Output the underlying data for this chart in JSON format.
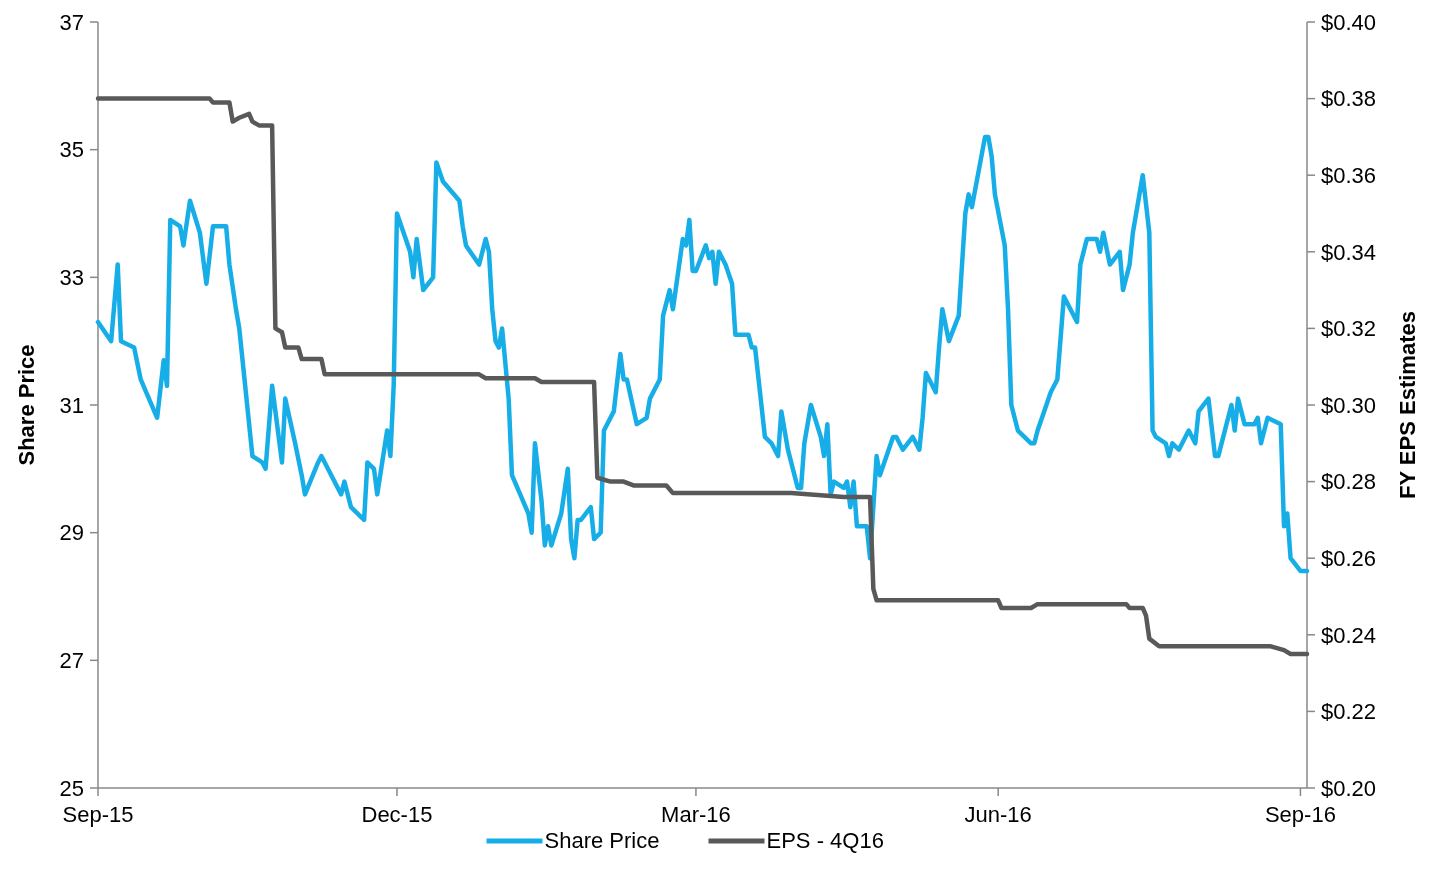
{
  "chart_data": {
    "type": "line",
    "ylabel": "Share Price",
    "y2label": "FY EPS Estimates",
    "legend": "bottom",
    "xlim": [
      "2015-09-01",
      "2016-09-03"
    ],
    "xticks": [
      {
        "value": "2015-09-01",
        "label": "Sep-15"
      },
      {
        "value": "2015-12-01",
        "label": "Dec-15"
      },
      {
        "value": "2016-03-01",
        "label": "Mar-16"
      },
      {
        "value": "2016-06-01",
        "label": "Jun-16"
      },
      {
        "value": "2016-09-01",
        "label": "Sep-16"
      }
    ],
    "ylim": [
      25,
      37
    ],
    "yticks": [
      25,
      27,
      29,
      31,
      33,
      35,
      37
    ],
    "y2lim": [
      0.2,
      0.4
    ],
    "y2ticks": [
      {
        "value": 0.2,
        "label": "$0.20"
      },
      {
        "value": 0.22,
        "label": "$0.22"
      },
      {
        "value": 0.24,
        "label": "$0.24"
      },
      {
        "value": 0.26,
        "label": "$0.26"
      },
      {
        "value": 0.28,
        "label": "$0.28"
      },
      {
        "value": 0.3,
        "label": "$0.30"
      },
      {
        "value": 0.32,
        "label": "$0.32"
      },
      {
        "value": 0.34,
        "label": "$0.34"
      },
      {
        "value": 0.36,
        "label": "$0.36"
      },
      {
        "value": 0.38,
        "label": "$0.38"
      },
      {
        "value": 0.4,
        "label": "$0.40"
      }
    ],
    "series": [
      {
        "name": "Share Price",
        "color": "#17aee8",
        "x": [
          "2015-09-01",
          "2015-09-05",
          "2015-09-07",
          "2015-09-08",
          "2015-09-12",
          "2015-09-14",
          "2015-09-19",
          "2015-09-21",
          "2015-09-22",
          "2015-09-23",
          "2015-09-26",
          "2015-09-27",
          "2015-09-29",
          "2015-10-02",
          "2015-10-04",
          "2015-10-06",
          "2015-10-10",
          "2015-10-11",
          "2015-10-13",
          "2015-10-14",
          "2015-10-18",
          "2015-10-21",
          "2015-10-22",
          "2015-10-24",
          "2015-10-27",
          "2015-10-28",
          "2015-10-31",
          "2015-11-02",
          "2015-11-03",
          "2015-11-07",
          "2015-11-08",
          "2015-11-11",
          "2015-11-14",
          "2015-11-15",
          "2015-11-17",
          "2015-11-21",
          "2015-11-22",
          "2015-11-24",
          "2015-11-25",
          "2015-11-28",
          "2015-11-29",
          "2015-11-30",
          "2015-12-01",
          "2015-12-05",
          "2015-12-06",
          "2015-12-07",
          "2015-12-09",
          "2015-12-12",
          "2015-12-13",
          "2015-12-15",
          "2015-12-20",
          "2015-12-21",
          "2015-12-22",
          "2015-12-26",
          "2015-12-28",
          "2015-12-29",
          "2015-12-30",
          "2015-12-31",
          "2016-01-01",
          "2016-01-02",
          "2016-01-04",
          "2016-01-05",
          "2016-01-10",
          "2016-01-11",
          "2016-01-12",
          "2016-01-14",
          "2016-01-15",
          "2016-01-16",
          "2016-01-17",
          "2016-01-20",
          "2016-01-22",
          "2016-01-23",
          "2016-01-24",
          "2016-01-25",
          "2016-01-26",
          "2016-01-29",
          "2016-01-30",
          "2016-02-01",
          "2016-02-02",
          "2016-02-05",
          "2016-02-07",
          "2016-02-08",
          "2016-02-09",
          "2016-02-12",
          "2016-02-15",
          "2016-02-16",
          "2016-02-19",
          "2016-02-20",
          "2016-02-22",
          "2016-02-23",
          "2016-02-26",
          "2016-02-27",
          "2016-02-28",
          "2016-02-29",
          "2016-03-01",
          "2016-03-04",
          "2016-03-05",
          "2016-03-06",
          "2016-03-07",
          "2016-03-08",
          "2016-03-10",
          "2016-03-12",
          "2016-03-13",
          "2016-03-17",
          "2016-03-18",
          "2016-03-19",
          "2016-03-22",
          "2016-03-24",
          "2016-03-26",
          "2016-03-27",
          "2016-03-29",
          "2016-04-01",
          "2016-04-02",
          "2016-04-03",
          "2016-04-05",
          "2016-04-08",
          "2016-04-09",
          "2016-04-10",
          "2016-04-11",
          "2016-04-12",
          "2016-04-15",
          "2016-04-16",
          "2016-04-17",
          "2016-04-18",
          "2016-04-19",
          "2016-04-22",
          "2016-04-23",
          "2016-04-25",
          "2016-04-26",
          "2016-04-30",
          "2016-05-01",
          "2016-05-03",
          "2016-05-06",
          "2016-05-08",
          "2016-05-09",
          "2016-05-10",
          "2016-05-13",
          "2016-05-14",
          "2016-05-15",
          "2016-05-17",
          "2016-05-20",
          "2016-05-22",
          "2016-05-23",
          "2016-05-24",
          "2016-05-28",
          "2016-05-29",
          "2016-05-30",
          "2016-05-31",
          "2016-06-03",
          "2016-06-04",
          "2016-06-05",
          "2016-06-06",
          "2016-06-07",
          "2016-06-11",
          "2016-06-12",
          "2016-06-13",
          "2016-06-17",
          "2016-06-19",
          "2016-06-21",
          "2016-06-25",
          "2016-06-26",
          "2016-06-28",
          "2016-07-01",
          "2016-07-02",
          "2016-07-03",
          "2016-07-05",
          "2016-07-08",
          "2016-07-09",
          "2016-07-11",
          "2016-07-12",
          "2016-07-15",
          "2016-07-17",
          "2016-07-18",
          "2016-07-19",
          "2016-07-22",
          "2016-07-23",
          "2016-07-24",
          "2016-07-26",
          "2016-07-29",
          "2016-07-31",
          "2016-08-01",
          "2016-08-04",
          "2016-08-06",
          "2016-08-07",
          "2016-08-11",
          "2016-08-12",
          "2016-08-13",
          "2016-08-15",
          "2016-08-18",
          "2016-08-19",
          "2016-08-20",
          "2016-08-22",
          "2016-08-26",
          "2016-08-27",
          "2016-08-28",
          "2016-08-29",
          "2016-09-01",
          "2016-09-03"
        ],
        "values": [
          32.3,
          32.0,
          33.2,
          32.0,
          31.9,
          31.4,
          30.8,
          31.7,
          31.3,
          33.9,
          33.8,
          33.5,
          34.2,
          33.7,
          32.9,
          33.8,
          33.8,
          33.2,
          32.5,
          32.2,
          30.2,
          30.1,
          30.0,
          31.3,
          30.1,
          31.1,
          30.4,
          29.9,
          29.6,
          30.1,
          30.2,
          29.9,
          29.6,
          29.8,
          29.4,
          29.2,
          30.1,
          30.0,
          29.6,
          30.6,
          30.2,
          31.3,
          34.0,
          33.4,
          33.0,
          33.6,
          32.8,
          33.0,
          34.8,
          34.5,
          34.2,
          33.8,
          33.5,
          33.2,
          33.6,
          33.4,
          32.5,
          32.0,
          31.9,
          32.2,
          31.1,
          29.9,
          29.3,
          29.0,
          30.4,
          29.5,
          28.8,
          29.1,
          28.8,
          29.3,
          30.0,
          28.9,
          28.6,
          29.2,
          29.2,
          29.4,
          28.9,
          29.0,
          30.6,
          30.9,
          31.8,
          31.4,
          31.4,
          30.7,
          30.8,
          31.1,
          31.4,
          32.4,
          32.8,
          32.5,
          33.6,
          33.5,
          33.9,
          33.1,
          33.1,
          33.5,
          33.3,
          33.4,
          32.9,
          33.4,
          33.2,
          32.9,
          32.1,
          32.1,
          31.9,
          31.9,
          30.5,
          30.4,
          30.2,
          30.9,
          30.3,
          29.7,
          29.7,
          30.4,
          31.0,
          30.5,
          30.2,
          30.7,
          29.6,
          29.8,
          29.7,
          29.8,
          29.4,
          29.8,
          29.1,
          29.1,
          28.6,
          30.2,
          29.9,
          30.5,
          30.5,
          30.3,
          30.5,
          30.3,
          30.8,
          31.5,
          31.2,
          31.9,
          32.5,
          32.0,
          32.4,
          34.0,
          34.3,
          34.1,
          35.2,
          35.2,
          34.9,
          34.3,
          33.5,
          32.5,
          31.0,
          30.8,
          30.6,
          30.4,
          30.4,
          30.6,
          31.2,
          31.4,
          32.7,
          32.3,
          33.2,
          33.6,
          33.6,
          33.4,
          33.7,
          33.2,
          33.4,
          32.8,
          33.2,
          33.7,
          34.6,
          33.7,
          30.6,
          30.5,
          30.4,
          30.2,
          30.4,
          30.3,
          30.6,
          30.4,
          30.9,
          31.1,
          30.2,
          30.2,
          31.0,
          30.6,
          31.1,
          30.7,
          30.7,
          30.8,
          30.4,
          30.8,
          30.7,
          29.1,
          29.3,
          28.6,
          28.4,
          28.4
        ]
      },
      {
        "name": "EPS - 4Q16",
        "color": "#595959",
        "axis": "y2",
        "x": [
          "2015-09-01",
          "2015-10-05",
          "2015-10-06",
          "2015-10-11",
          "2015-10-12",
          "2015-10-14",
          "2015-10-17",
          "2015-10-18",
          "2015-10-20",
          "2015-10-24",
          "2015-10-25",
          "2015-10-27",
          "2015-10-28",
          "2015-11-01",
          "2015-11-02",
          "2015-11-08",
          "2015-11-09",
          "2015-12-26",
          "2015-12-28",
          "2016-01-12",
          "2016-01-14",
          "2016-01-30",
          "2016-01-31",
          "2016-02-04",
          "2016-02-08",
          "2016-02-11",
          "2016-02-21",
          "2016-02-23",
          "2016-03-30",
          "2016-04-15",
          "2016-04-23",
          "2016-04-24",
          "2016-04-25",
          "2016-05-17",
          "2016-05-20",
          "2016-06-01",
          "2016-06-02",
          "2016-06-11",
          "2016-06-13",
          "2016-07-10",
          "2016-07-11",
          "2016-07-15",
          "2016-07-16",
          "2016-07-17",
          "2016-07-20",
          "2016-08-23",
          "2016-08-27",
          "2016-08-29",
          "2016-09-03"
        ],
        "values": [
          0.38,
          0.38,
          0.379,
          0.379,
          0.374,
          0.375,
          0.376,
          0.374,
          0.373,
          0.373,
          0.32,
          0.319,
          0.315,
          0.315,
          0.312,
          0.312,
          0.308,
          0.308,
          0.307,
          0.307,
          0.306,
          0.306,
          0.281,
          0.28,
          0.28,
          0.279,
          0.279,
          0.277,
          0.277,
          0.276,
          0.276,
          0.252,
          0.249,
          0.249,
          0.249,
          0.249,
          0.247,
          0.247,
          0.248,
          0.248,
          0.247,
          0.247,
          0.245,
          0.239,
          0.237,
          0.237,
          0.236,
          0.235,
          0.235
        ]
      }
    ]
  }
}
